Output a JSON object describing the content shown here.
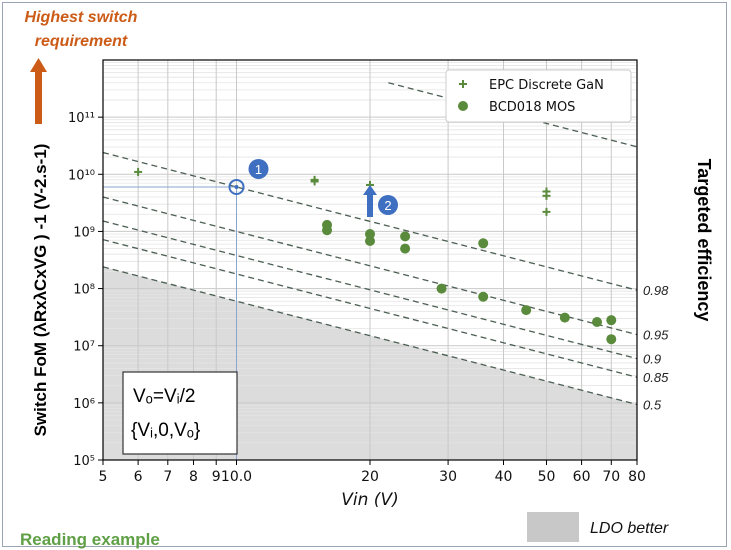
{
  "annotations": {
    "top_note_lines": [
      "Highest switch",
      "requirement"
    ],
    "eq_line1": "Vₒ=Vᵢ/2",
    "eq_line2": "{Vᵢ,0,Vₒ}",
    "bottom_caption": "Reading example",
    "ldo_label": "LDO better",
    "marker1": "1",
    "marker2": "2"
  },
  "colors": {
    "accent_orange": "#cc5b17",
    "series_green": "#5a8a3c",
    "marker_blue": "#3f6fc0",
    "dashed_line": "#4c5f52",
    "ldo_fill": "#dcdcdc"
  },
  "chart_data": {
    "type": "scatter",
    "x_scale": "log",
    "y_scale": "log",
    "xlim": [
      5,
      80
    ],
    "ylim": [
      100000,
      1000000000000
    ],
    "ylabel": "Switch FoM (λRxλCxVG ) -1  (V-2.s-1)",
    "xlabel": "Vin (V)",
    "y2label": "Targeted efficiency",
    "x_ticks": [
      5,
      6,
      7,
      8,
      9,
      10,
      20,
      30,
      40,
      50,
      60,
      70,
      80
    ],
    "x_tick_labels": [
      "5",
      "6",
      "7",
      "8",
      "9",
      "10.0",
      "20",
      "30",
      "40",
      "50",
      "60",
      "70",
      "80"
    ],
    "y_ticks": [
      100000,
      1000000,
      10000000,
      100000000,
      1000000000,
      10000000000,
      100000000000
    ],
    "y_tick_labels": [
      "10⁵",
      "10⁶",
      "10⁷",
      "10⁸",
      "10⁹",
      "10¹⁰",
      "10¹¹"
    ],
    "grid": true,
    "legend_position": "top-right",
    "series": [
      {
        "name": "EPC Discrete GaN",
        "marker": "plus",
        "points": [
          [
            6,
            11000000000
          ],
          [
            15,
            8000000000
          ],
          [
            15,
            7500000000
          ],
          [
            20,
            6500000000
          ],
          [
            50,
            5000000000
          ],
          [
            50,
            4200000000
          ],
          [
            50,
            2200000000
          ]
        ]
      },
      {
        "name": "BCD018 MOS",
        "marker": "circle",
        "points": [
          [
            16,
            1300000000
          ],
          [
            16,
            1050000000
          ],
          [
            20,
            900000000
          ],
          [
            20,
            680000000
          ],
          [
            24,
            820000000
          ],
          [
            24,
            500000000
          ],
          [
            36,
            620000000
          ],
          [
            29,
            100000000
          ],
          [
            36,
            72000000
          ],
          [
            45,
            42000000
          ],
          [
            55,
            31000000
          ],
          [
            65,
            26000000
          ],
          [
            70,
            28000000
          ],
          [
            70,
            13000000
          ]
        ]
      }
    ],
    "efficiency_lines": [
      {
        "label": "0.98",
        "fom_at_10V": 6000000000
      },
      {
        "label": "0.95",
        "fom_at_10V": 1000000000
      },
      {
        "label": "0.9",
        "fom_at_10V": 380000000
      },
      {
        "label": "0.85",
        "fom_at_10V": 180000000
      },
      {
        "label": "0.5",
        "fom_at_10V": 60000000
      }
    ],
    "top_dashed_line_start": [
      22,
      400000000000
    ],
    "reading_example": {
      "point": [
        10,
        6000000000
      ],
      "arrow_at_vin": 20
    }
  }
}
